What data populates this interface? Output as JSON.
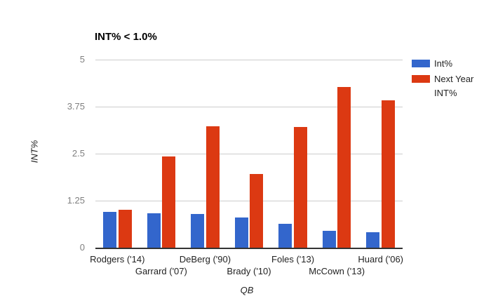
{
  "chart_data": {
    "type": "bar",
    "title": "INT% < 1.0%",
    "xlabel": "QB",
    "ylabel": "INT%",
    "ylim": [
      0,
      5
    ],
    "yticks": [
      0,
      1.25,
      2.5,
      3.75,
      5
    ],
    "grid": true,
    "legend_position": "right",
    "categories": [
      "Rodgers ('14)",
      "Garrard ('07)",
      "DeBerg ('90)",
      "Brady ('10)",
      "Foles ('13)",
      "McCown ('13)",
      "Huard ('06)"
    ],
    "series": [
      {
        "name": "Int%",
        "color": "#3366CC",
        "values": [
          0.96,
          0.92,
          0.9,
          0.81,
          0.63,
          0.45,
          0.41
        ]
      },
      {
        "name": "Next Year INT%",
        "color": "#DC3912",
        "values": [
          1.0,
          2.43,
          3.23,
          1.96,
          3.21,
          4.28,
          3.92
        ]
      }
    ]
  },
  "colors": {
    "series_blue": "#3366CC",
    "series_red": "#DC3912",
    "gridline": "#cccccc",
    "baseline": "#333333",
    "y_tick_text": "#808080",
    "x_tick_text": "#222222",
    "title_text": "#000000",
    "background": "#ffffff"
  }
}
